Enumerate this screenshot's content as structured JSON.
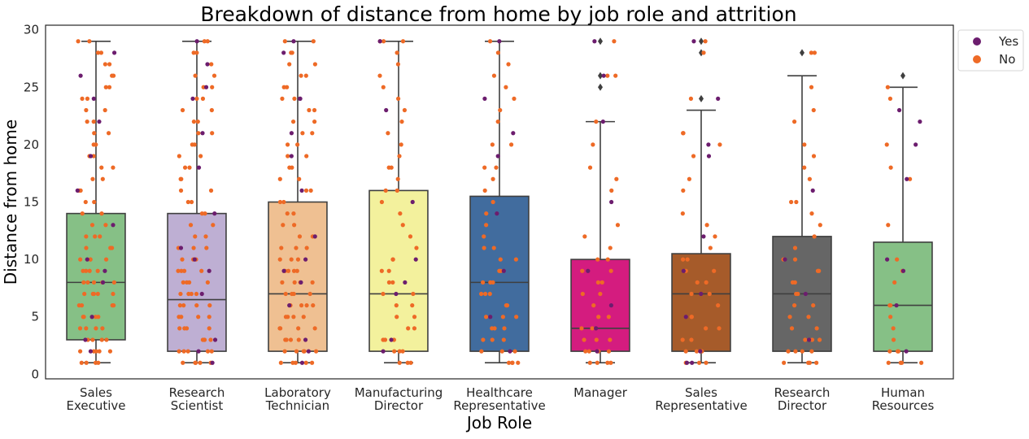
{
  "chart_data": {
    "type": "box",
    "title": "Breakdown of distance from home by job role and attrition",
    "xlabel": "Job Role",
    "ylabel": "Distance from home",
    "ylim": [
      -0.4,
      30.4
    ],
    "yticks": [
      0,
      5,
      10,
      15,
      20,
      25,
      30
    ],
    "grid": false,
    "legend_position": "outside-top-right",
    "legend": [
      {
        "label": "Yes",
        "color": "#6c1d6e"
      },
      {
        "label": "No",
        "color": "#ee6a26"
      }
    ],
    "categories": [
      {
        "label_lines": [
          "Sales",
          "Executive"
        ],
        "box_color": "#86c086",
        "whisker_low": 1,
        "q1": 3,
        "median": 8,
        "q3": 14,
        "whisker_high": 29,
        "outliers": [],
        "points_no": [
          1,
          1,
          1,
          1,
          2,
          2,
          2,
          2,
          2,
          3,
          3,
          3,
          3,
          4,
          4,
          4,
          4,
          5,
          5,
          5,
          5,
          6,
          6,
          6,
          6,
          7,
          7,
          7,
          7,
          7,
          8,
          8,
          8,
          8,
          8,
          9,
          9,
          9,
          9,
          10,
          10,
          10,
          10,
          11,
          11,
          11,
          12,
          12,
          12,
          13,
          13,
          14,
          14,
          15,
          15,
          16,
          16,
          17,
          17,
          18,
          18,
          19,
          19,
          20,
          20,
          21,
          21,
          22,
          22,
          23,
          23,
          24,
          24,
          25,
          25,
          26,
          26,
          27,
          27,
          28,
          28,
          29,
          29
        ],
        "points_yes": [
          2,
          3,
          5,
          8,
          9,
          10,
          13,
          16,
          19,
          22,
          24,
          26,
          28
        ]
      },
      {
        "label_lines": [
          "Research",
          "Scientist"
        ],
        "box_color": "#beafd3",
        "whisker_low": 1,
        "q1": 2,
        "median": 6.5,
        "q3": 14,
        "whisker_high": 29,
        "outliers": [],
        "points_no": [
          1,
          1,
          1,
          1,
          1,
          2,
          2,
          2,
          2,
          2,
          3,
          3,
          3,
          3,
          4,
          4,
          4,
          4,
          5,
          5,
          5,
          5,
          6,
          6,
          6,
          6,
          7,
          7,
          7,
          7,
          8,
          8,
          8,
          8,
          9,
          9,
          9,
          9,
          10,
          10,
          10,
          11,
          11,
          11,
          12,
          12,
          13,
          13,
          14,
          14,
          15,
          15,
          16,
          16,
          17,
          17,
          18,
          18,
          19,
          19,
          20,
          20,
          21,
          21,
          22,
          22,
          23,
          23,
          24,
          24,
          25,
          25,
          26,
          26,
          27,
          28,
          28,
          29,
          29
        ],
        "points_yes": [
          1,
          2,
          3,
          7,
          9,
          10,
          11,
          14,
          18,
          21,
          24,
          25,
          27,
          29
        ]
      },
      {
        "label_lines": [
          "Laboratory",
          "Technician"
        ],
        "box_color": "#efc092",
        "whisker_low": 1,
        "q1": 2,
        "median": 7,
        "q3": 15,
        "whisker_high": 29,
        "outliers": [],
        "points_no": [
          1,
          1,
          1,
          1,
          1,
          2,
          2,
          2,
          2,
          2,
          3,
          3,
          3,
          3,
          4,
          4,
          4,
          4,
          5,
          5,
          5,
          5,
          6,
          6,
          6,
          6,
          7,
          7,
          7,
          7,
          8,
          8,
          8,
          8,
          9,
          9,
          9,
          9,
          10,
          10,
          10,
          11,
          11,
          11,
          12,
          12,
          13,
          13,
          14,
          14,
          15,
          15,
          16,
          16,
          17,
          17,
          18,
          18,
          19,
          19,
          20,
          20,
          21,
          21,
          22,
          22,
          23,
          23,
          24,
          24,
          25,
          25,
          26,
          26,
          27,
          27,
          28,
          28,
          29,
          29
        ],
        "points_yes": [
          1,
          2,
          3,
          6,
          8,
          9,
          10,
          12,
          16,
          19,
          21,
          24,
          24,
          28,
          29
        ]
      },
      {
        "label_lines": [
          "Manufacturing",
          "Director"
        ],
        "box_color": "#f3f19d",
        "whisker_low": 1,
        "q1": 2,
        "median": 7,
        "q3": 16,
        "whisker_high": 29,
        "outliers": [],
        "points_no": [
          1,
          1,
          1,
          2,
          2,
          2,
          3,
          3,
          3,
          4,
          4,
          5,
          5,
          6,
          6,
          7,
          7,
          8,
          8,
          9,
          9,
          10,
          10,
          11,
          12,
          13,
          14,
          15,
          16,
          16,
          17,
          18,
          18,
          19,
          20,
          21,
          22,
          23,
          24,
          25,
          26,
          27,
          28,
          29,
          29,
          29
        ],
        "points_yes": [
          2,
          3,
          7,
          8,
          10,
          15,
          23,
          29
        ]
      },
      {
        "label_lines": [
          "Healthcare",
          "Representative"
        ],
        "box_color": "#416c9e",
        "whisker_low": 1,
        "q1": 2,
        "median": 8,
        "q3": 15.5,
        "whisker_high": 29,
        "outliers": [],
        "points_no": [
          1,
          1,
          1,
          1,
          2,
          2,
          2,
          3,
          3,
          3,
          4,
          4,
          4,
          5,
          5,
          5,
          6,
          6,
          7,
          7,
          7,
          8,
          8,
          8,
          9,
          9,
          10,
          10,
          11,
          11,
          12,
          13,
          14,
          15,
          16,
          17,
          18,
          18,
          20,
          20,
          22,
          23,
          24,
          25,
          26,
          27,
          28,
          29
        ],
        "points_yes": [
          2,
          5,
          9,
          14,
          19,
          21,
          24,
          29
        ]
      },
      {
        "label_lines": [
          "Manager"
        ],
        "box_color": "#d41c7f",
        "whisker_low": 1,
        "q1": 2,
        "median": 4,
        "q3": 10,
        "whisker_high": 22,
        "outliers": [
          25,
          26,
          29
        ],
        "points_no": [
          1,
          1,
          1,
          1,
          2,
          2,
          2,
          2,
          3,
          3,
          3,
          4,
          4,
          5,
          5,
          6,
          7,
          7,
          8,
          8,
          9,
          9,
          10,
          10,
          11,
          12,
          13,
          16,
          17,
          18,
          20,
          22,
          26,
          26,
          29
        ],
        "points_yes": [
          2,
          4,
          6,
          9,
          15,
          22,
          26,
          29
        ]
      },
      {
        "label_lines": [
          "Sales",
          "Representative"
        ],
        "box_color": "#a65b2a",
        "whisker_low": 1,
        "q1": 2,
        "median": 7,
        "q3": 10.5,
        "whisker_high": 23,
        "outliers": [
          24,
          28,
          29
        ],
        "points_no": [
          1,
          1,
          1,
          2,
          2,
          2,
          3,
          3,
          4,
          4,
          5,
          5,
          6,
          7,
          7,
          8,
          8,
          9,
          9,
          10,
          10,
          11,
          12,
          13,
          14,
          16,
          17,
          19,
          20,
          21,
          21,
          24,
          28,
          29
        ],
        "points_yes": [
          1,
          1,
          2,
          5,
          7,
          9,
          12,
          19,
          20,
          24,
          29
        ]
      },
      {
        "label_lines": [
          "Research",
          "Director"
        ],
        "box_color": "#666666",
        "whisker_low": 1,
        "q1": 2,
        "median": 7,
        "q3": 12,
        "whisker_high": 26,
        "outliers": [
          28
        ],
        "points_no": [
          1,
          1,
          1,
          1,
          2,
          2,
          2,
          2,
          3,
          3,
          3,
          4,
          4,
          5,
          5,
          6,
          6,
          7,
          7,
          8,
          8,
          9,
          9,
          10,
          10,
          11,
          12,
          13,
          14,
          15,
          15,
          17,
          18,
          19,
          20,
          22,
          23,
          25,
          28,
          28
        ],
        "points_yes": [
          3,
          7,
          10,
          16
        ]
      },
      {
        "label_lines": [
          "Human",
          "Resources"
        ],
        "box_color": "#86c086",
        "whisker_low": 1,
        "q1": 2,
        "median": 6,
        "q3": 11.5,
        "whisker_high": 25,
        "outliers": [
          26
        ],
        "points_no": [
          1,
          1,
          1,
          1,
          2,
          2,
          2,
          3,
          4,
          5,
          6,
          6,
          8,
          9,
          10,
          13,
          17,
          18,
          20,
          24,
          25
        ],
        "points_yes": [
          2,
          6,
          9,
          10,
          17,
          20,
          22,
          23
        ]
      }
    ]
  }
}
